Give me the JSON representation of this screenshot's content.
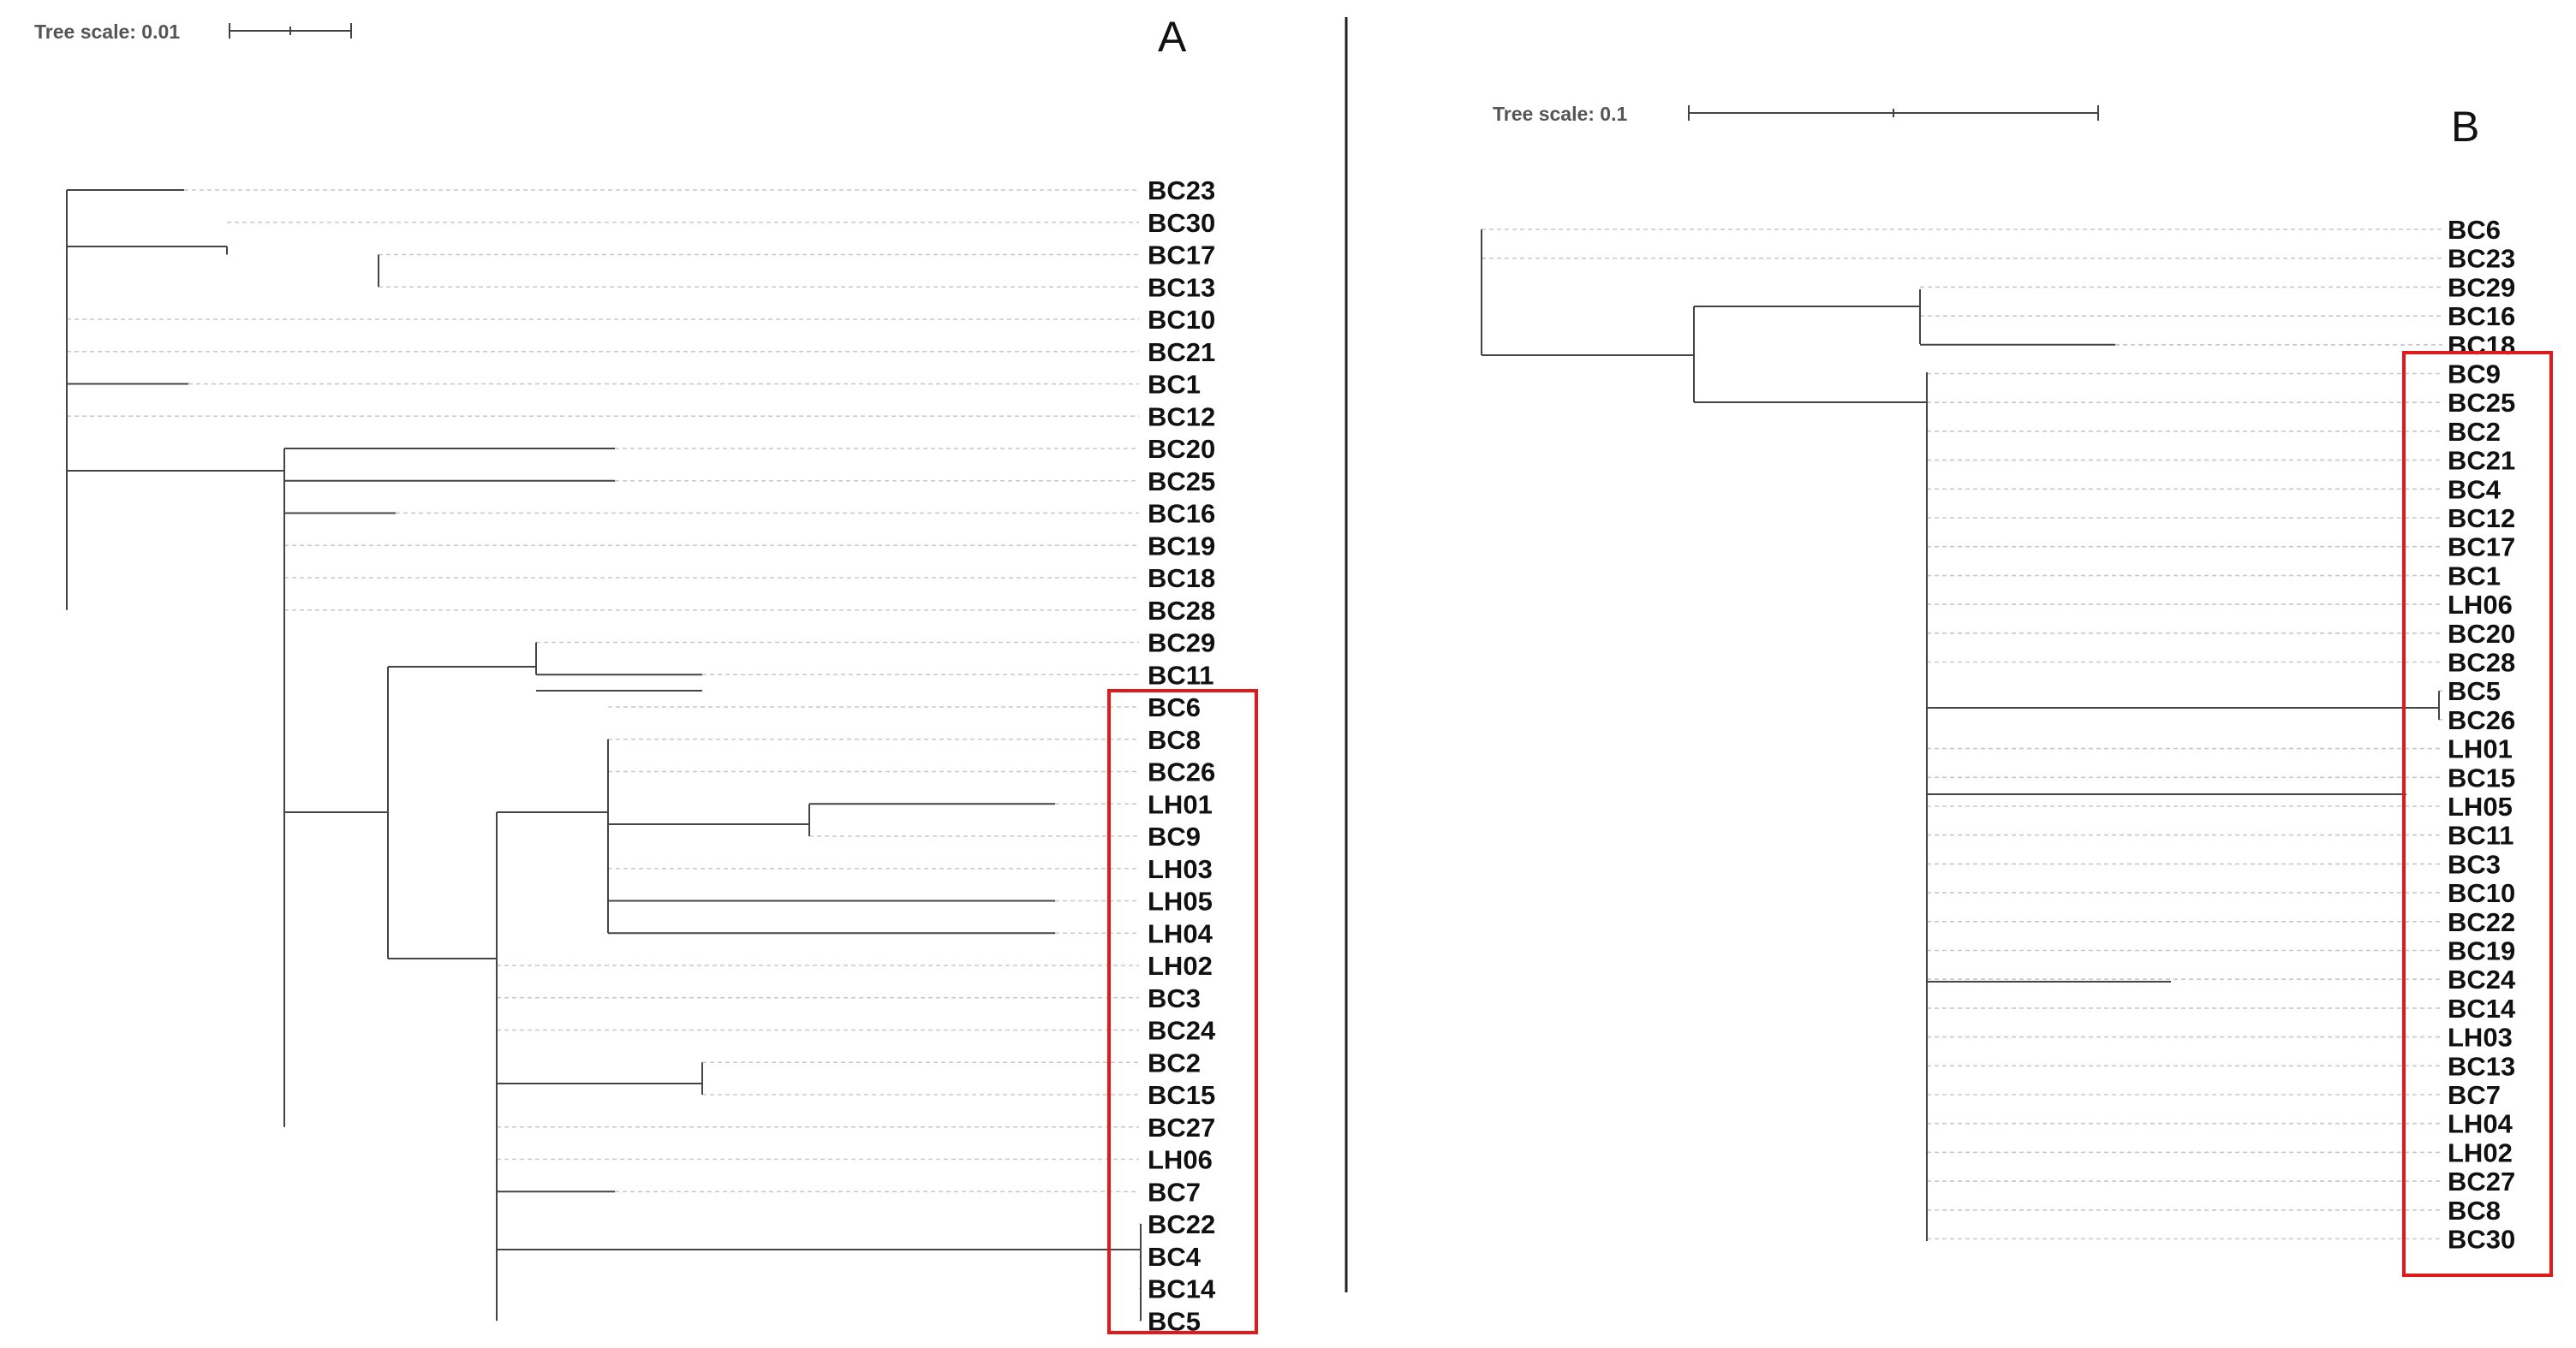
{
  "panel_a": {
    "label": "A",
    "scale_label": "Tree scale: 0.01",
    "leaves": [
      "BC23",
      "BC30",
      "BC17",
      "BC13",
      "BC10",
      "BC21",
      "BC1",
      "BC12",
      "BC20",
      "BC25",
      "BC16",
      "BC19",
      "BC18",
      "BC28",
      "BC29",
      "BC11",
      "BC6",
      "BC8",
      "BC26",
      "LH01",
      "BC9",
      "LH03",
      "LH05",
      "LH04",
      "LH02",
      "BC3",
      "BC24",
      "BC2",
      "BC15",
      "BC27",
      "LH06",
      "BC7",
      "BC22",
      "BC4",
      "BC14",
      "BC5"
    ]
  },
  "panel_b": {
    "label": "B",
    "scale_label": "Tree scale: 0.1",
    "leaves": [
      "BC6",
      "BC23",
      "BC29",
      "BC16",
      "BC18",
      "BC9",
      "BC25",
      "BC2",
      "BC21",
      "BC4",
      "BC12",
      "BC17",
      "BC1",
      "LH06",
      "BC20",
      "BC28",
      "BC5",
      "BC26",
      "LH01",
      "BC15",
      "LH05",
      "BC11",
      "BC3",
      "BC10",
      "BC22",
      "BC19",
      "BC24",
      "BC14",
      "LH03",
      "BC13",
      "BC7",
      "LH04",
      "LH02",
      "BC27",
      "BC8",
      "BC30"
    ]
  },
  "colors": {
    "highlight_box": "#e2191b",
    "branch": "#444444",
    "guide": "#c8c8c8"
  }
}
